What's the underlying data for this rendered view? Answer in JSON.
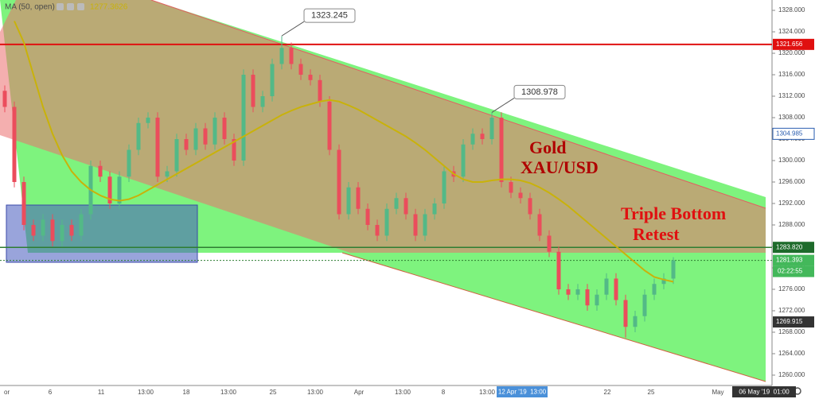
{
  "chart_data": {
    "type": "candlestick",
    "up_color": "#53b987",
    "down_color": "#eb4d5c",
    "indicator": {
      "label": "MA (50, open)",
      "value": 1277.3626,
      "color": "#c9b20a",
      "values": [
        null,
        1326,
        1322,
        1316,
        1310,
        1305,
        1301,
        1298,
        1296,
        1294.5,
        1293.5,
        1292.8,
        1292.5,
        1292.8,
        1293.5,
        1294.5,
        1295.5,
        1296.5,
        1297.5,
        1298.5,
        1299.5,
        1300.5,
        1301.5,
        1302.5,
        1303.5,
        1304.5,
        1305.5,
        1306.5,
        1307.5,
        1308.5,
        1309.3,
        1310,
        1310.5,
        1311,
        1311.3,
        1311,
        1310.3,
        1309.5,
        1308.5,
        1307.5,
        1306.5,
        1305.5,
        1304.5,
        1303.3,
        1302,
        1300.5,
        1299,
        1297.5,
        1296.5,
        1296,
        1296,
        1296.3,
        1296.5,
        1296.5,
        1296.3,
        1295.8,
        1295,
        1294,
        1292.8,
        1291.5,
        1290,
        1288.5,
        1287,
        1285.5,
        1284,
        1282.5,
        1281,
        1279.5,
        1278.3,
        1277.8,
        1277.4
      ]
    },
    "open": [
      1313,
      1310,
      1296,
      1288,
      1286,
      1289,
      1285,
      1288,
      1286,
      1290,
      1299,
      1297,
      1292,
      1297,
      1302,
      1307,
      1308,
      1297,
      1298,
      1304,
      1302,
      1306,
      1303,
      1308,
      1304,
      1300,
      1316,
      1310,
      1312,
      1318,
      1321,
      1318,
      1316,
      1315,
      1311,
      1302,
      1290,
      1295,
      1291,
      1288,
      1286,
      1291,
      1293,
      1290,
      1286,
      1290,
      1292,
      1298,
      1297,
      1303,
      1305,
      1304,
      1308,
      1296,
      1294,
      1293,
      1290,
      1286,
      1283,
      1276,
      1275,
      1276,
      1273,
      1275,
      1278,
      1274,
      1269,
      1271,
      1275,
      1277,
      1278
    ],
    "high": [
      1314,
      1311,
      1297,
      1289,
      1290,
      1290,
      1289,
      1289,
      1291,
      1300,
      1300,
      1298,
      1298,
      1303,
      1308,
      1309,
      1309,
      1299,
      1305,
      1305,
      1307,
      1307,
      1309,
      1309,
      1305,
      1317,
      1317,
      1313,
      1319,
      1323.2,
      1322,
      1319,
      1317,
      1316,
      1312,
      1303,
      1296,
      1296,
      1292,
      1289,
      1292,
      1294,
      1294,
      1291,
      1291,
      1293,
      1299,
      1299,
      1304,
      1306,
      1306,
      1309,
      1309,
      1297,
      1295,
      1294,
      1291,
      1287,
      1284,
      1277,
      1277,
      1277,
      1276,
      1279,
      1279,
      1275,
      1272,
      1276,
      1278,
      1279,
      1282
    ],
    "low": [
      1309,
      1295,
      1287,
      1285,
      1285,
      1284,
      1284,
      1285,
      1285,
      1289,
      1296,
      1291,
      1291,
      1296,
      1301,
      1306,
      1296,
      1296,
      1297,
      1301,
      1301,
      1302,
      1302,
      1303,
      1299,
      1299,
      1309,
      1309,
      1311,
      1317,
      1317,
      1315,
      1314,
      1310,
      1301,
      1289,
      1289,
      1290,
      1287,
      1285,
      1285,
      1290,
      1289,
      1285,
      1285,
      1289,
      1291,
      1296,
      1296,
      1302,
      1303,
      1303,
      1295,
      1293,
      1292,
      1289,
      1285,
      1282,
      1275,
      1274,
      1274,
      1272,
      1272,
      1274,
      1273,
      1267,
      1268,
      1270,
      1274,
      1276,
      1277
    ],
    "close": [
      1310,
      1296,
      1288,
      1286,
      1289,
      1285,
      1288,
      1286,
      1290,
      1299,
      1297,
      1292,
      1297,
      1302,
      1307,
      1308,
      1297,
      1298,
      1304,
      1302,
      1306,
      1303,
      1308,
      1304,
      1300,
      1316,
      1310,
      1312,
      1318,
      1321,
      1318,
      1316,
      1315,
      1311,
      1302,
      1290,
      1295,
      1291,
      1288,
      1286,
      1291,
      1293,
      1290,
      1286,
      1290,
      1292,
      1298,
      1297,
      1303,
      1305,
      1304,
      1308,
      1296,
      1294,
      1293,
      1290,
      1286,
      1283,
      1276,
      1275,
      1276,
      1273,
      1275,
      1278,
      1274,
      1269,
      1271,
      1275,
      1277,
      1278,
      1281.4
    ],
    "ylim": [
      1258.07,
      1329.93
    ],
    "yticks": [
      {
        "value": 1260,
        "label": "1260.000"
      },
      {
        "value": 1264,
        "label": "1264.000"
      },
      {
        "value": 1268,
        "label": "1268.000"
      },
      {
        "value": 1272,
        "label": "1272.000"
      },
      {
        "value": 1276,
        "label": "1276.000"
      },
      {
        "value": 1280,
        "label": "1280.000"
      },
      {
        "value": 1284,
        "label": "1284.000"
      },
      {
        "value": 1288,
        "label": "1288.000"
      },
      {
        "value": 1292,
        "label": "1292.000"
      },
      {
        "value": 1296,
        "label": "1296.000"
      },
      {
        "value": 1300,
        "label": "1300.000"
      },
      {
        "value": 1304,
        "label": "1304.000"
      },
      {
        "value": 1308,
        "label": "1308.000"
      },
      {
        "value": 1312,
        "label": "1312.000"
      },
      {
        "value": 1316,
        "label": "1316.000"
      },
      {
        "value": 1320,
        "label": "1320.000"
      },
      {
        "value": 1324,
        "label": "1324.000"
      },
      {
        "value": 1328,
        "label": "1328.000"
      }
    ],
    "x_labels": [
      "or",
      "6",
      "11",
      "13:00",
      "18",
      "13:00",
      "25",
      "13:00",
      "Apr",
      "13:00",
      "8",
      "13:00",
      "22",
      "25",
      "May"
    ],
    "crosshair_labels": [
      "12 Apr '19  13:00",
      "06 May '19  01:00"
    ],
    "price_labels": [
      1321.656,
      1304.985,
      {
        "value": 1283.82,
        "label": "1283.820"
      },
      1281.393,
      1269.915
    ],
    "countdown": "02:22:55",
    "callouts": [
      1323.245,
      1308.978
    ],
    "annotations": [
      "Gold",
      "XAU/USD",
      "Triple Bottom",
      "Retest"
    ]
  }
}
